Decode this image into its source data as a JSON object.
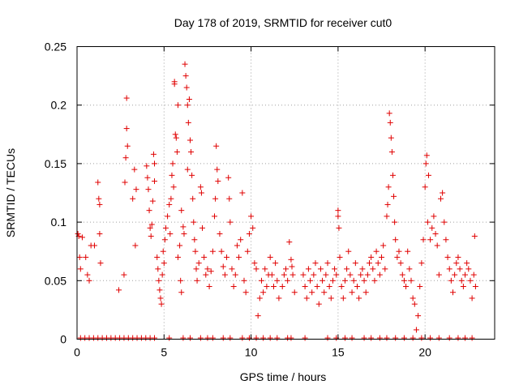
{
  "chart_data": {
    "type": "scatter",
    "title": "Day 178 of 2019, SRMTID for receiver cut0",
    "xlabel": "GPS time / hours",
    "ylabel": "SRMTID / TECUs",
    "xlim": [
      0,
      24
    ],
    "ylim": [
      0,
      0.25
    ],
    "xticks": [
      0,
      5,
      10,
      15,
      20
    ],
    "xtick_labels": [
      "0",
      "5",
      "10",
      "15",
      "20"
    ],
    "yticks": [
      0,
      0.05,
      0.1,
      0.15,
      0.2,
      0.25
    ],
    "ytick_labels": [
      "0",
      "0.05",
      "0.1",
      "0.15",
      "0.2",
      "0.25"
    ],
    "grid": true,
    "marker": "+",
    "series": [
      {
        "name": "SRMTID",
        "color": "#e00000",
        "points": [
          [
            0.05,
            0.09
          ],
          [
            0.1,
            0.088
          ],
          [
            0.15,
            0.07
          ],
          [
            0.2,
            0.06
          ],
          [
            0.3,
            0.087
          ],
          [
            0.5,
            0.07
          ],
          [
            0.6,
            0.055
          ],
          [
            0.7,
            0.05
          ],
          [
            0.8,
            0.08
          ],
          [
            1.0,
            0.08
          ],
          [
            1.2,
            0.134
          ],
          [
            1.25,
            0.12
          ],
          [
            1.3,
            0.115
          ],
          [
            1.3,
            0.09
          ],
          [
            1.35,
            0.065
          ],
          [
            2.4,
            0.042
          ],
          [
            2.7,
            0.055
          ],
          [
            2.75,
            0.134
          ],
          [
            2.8,
            0.155
          ],
          [
            2.85,
            0.18
          ],
          [
            2.85,
            0.206
          ],
          [
            2.9,
            0.165
          ],
          [
            3.2,
            0.12
          ],
          [
            3.3,
            0.145
          ],
          [
            3.35,
            0.08
          ],
          [
            3.4,
            0.128
          ],
          [
            4.0,
            0.148
          ],
          [
            4.05,
            0.138
          ],
          [
            4.1,
            0.128
          ],
          [
            4.15,
            0.11
          ],
          [
            4.2,
            0.095
          ],
          [
            4.25,
            0.088
          ],
          [
            4.3,
            0.098
          ],
          [
            4.35,
            0.118
          ],
          [
            4.4,
            0.158
          ],
          [
            4.45,
            0.15
          ],
          [
            4.45,
            0.135
          ],
          [
            4.6,
            0.07
          ],
          [
            4.65,
            0.06
          ],
          [
            4.7,
            0.05
          ],
          [
            4.75,
            0.042
          ],
          [
            4.8,
            0.035
          ],
          [
            4.85,
            0.03
          ],
          [
            4.9,
            0.055
          ],
          [
            4.95,
            0.075
          ],
          [
            5.0,
            0.065
          ],
          [
            5.05,
            0.085
          ],
          [
            5.1,
            0.095
          ],
          [
            5.2,
            0.105
          ],
          [
            5.3,
            0.115
          ],
          [
            5.35,
            0.09
          ],
          [
            5.4,
            0.12
          ],
          [
            5.45,
            0.14
          ],
          [
            5.5,
            0.15
          ],
          [
            5.55,
            0.13
          ],
          [
            5.6,
            0.22
          ],
          [
            5.6,
            0.218
          ],
          [
            5.65,
            0.175
          ],
          [
            5.7,
            0.172
          ],
          [
            5.75,
            0.16
          ],
          [
            5.8,
            0.2
          ],
          [
            5.8,
            0.07
          ],
          [
            5.9,
            0.08
          ],
          [
            5.95,
            0.05
          ],
          [
            6.0,
            0.11
          ],
          [
            6.0,
            0.04
          ],
          [
            6.1,
            0.096
          ],
          [
            6.15,
            0.09
          ],
          [
            6.2,
            0.235
          ],
          [
            6.25,
            0.225
          ],
          [
            6.3,
            0.215
          ],
          [
            6.35,
            0.2
          ],
          [
            6.35,
            0.145
          ],
          [
            6.4,
            0.185
          ],
          [
            6.45,
            0.205
          ],
          [
            6.5,
            0.17
          ],
          [
            6.55,
            0.16
          ],
          [
            6.6,
            0.14
          ],
          [
            6.65,
            0.12
          ],
          [
            6.7,
            0.1
          ],
          [
            6.75,
            0.085
          ],
          [
            6.8,
            0.075
          ],
          [
            6.85,
            0.06
          ],
          [
            6.9,
            0.05
          ],
          [
            7.0,
            0.065
          ],
          [
            7.1,
            0.13
          ],
          [
            7.15,
            0.125
          ],
          [
            7.2,
            0.095
          ],
          [
            7.3,
            0.07
          ],
          [
            7.4,
            0.055
          ],
          [
            7.5,
            0.06
          ],
          [
            7.6,
            0.045
          ],
          [
            7.7,
            0.058
          ],
          [
            7.8,
            0.075
          ],
          [
            7.9,
            0.105
          ],
          [
            7.95,
            0.12
          ],
          [
            8.0,
            0.165
          ],
          [
            8.05,
            0.145
          ],
          [
            8.1,
            0.135
          ],
          [
            8.2,
            0.09
          ],
          [
            8.3,
            0.075
          ],
          [
            8.4,
            0.062
          ],
          [
            8.5,
            0.055
          ],
          [
            8.6,
            0.07
          ],
          [
            8.7,
            0.138
          ],
          [
            8.75,
            0.12
          ],
          [
            8.8,
            0.1
          ],
          [
            8.9,
            0.06
          ],
          [
            9.0,
            0.045
          ],
          [
            9.1,
            0.055
          ],
          [
            9.2,
            0.08
          ],
          [
            9.3,
            0.07
          ],
          [
            9.4,
            0.085
          ],
          [
            9.5,
            0.125
          ],
          [
            9.6,
            0.05
          ],
          [
            9.7,
            0.04
          ],
          [
            9.8,
            0.075
          ],
          [
            9.9,
            0.09
          ],
          [
            10.0,
            0.105
          ],
          [
            10.1,
            0.095
          ],
          [
            10.2,
            0.065
          ],
          [
            10.3,
            0.06
          ],
          [
            10.4,
            0.02
          ],
          [
            10.5,
            0.035
          ],
          [
            10.6,
            0.05
          ],
          [
            10.7,
            0.04
          ],
          [
            10.8,
            0.06
          ],
          [
            10.9,
            0.045
          ],
          [
            11.0,
            0.055
          ],
          [
            11.1,
            0.07
          ],
          [
            11.2,
            0.055
          ],
          [
            11.3,
            0.045
          ],
          [
            11.4,
            0.065
          ],
          [
            11.5,
            0.05
          ],
          [
            11.6,
            0.035
          ],
          [
            11.8,
            0.045
          ],
          [
            11.9,
            0.055
          ],
          [
            12.0,
            0.06
          ],
          [
            12.1,
            0.05
          ],
          [
            12.2,
            0.083
          ],
          [
            12.3,
            0.068
          ],
          [
            12.35,
            0.062
          ],
          [
            12.4,
            0.055
          ],
          [
            12.5,
            0.04
          ],
          [
            13.0,
            0.055
          ],
          [
            13.1,
            0.045
          ],
          [
            13.2,
            0.035
          ],
          [
            13.3,
            0.06
          ],
          [
            13.4,
            0.05
          ],
          [
            13.5,
            0.04
          ],
          [
            13.6,
            0.055
          ],
          [
            13.7,
            0.065
          ],
          [
            13.8,
            0.045
          ],
          [
            13.9,
            0.03
          ],
          [
            14.0,
            0.06
          ],
          [
            14.1,
            0.05
          ],
          [
            14.2,
            0.04
          ],
          [
            14.3,
            0.055
          ],
          [
            14.4,
            0.065
          ],
          [
            14.5,
            0.045
          ],
          [
            14.6,
            0.035
          ],
          [
            14.7,
            0.05
          ],
          [
            14.8,
            0.06
          ],
          [
            14.9,
            0.055
          ],
          [
            15.0,
            0.11
          ],
          [
            15.0,
            0.105
          ],
          [
            15.05,
            0.095
          ],
          [
            15.1,
            0.07
          ],
          [
            15.2,
            0.045
          ],
          [
            15.3,
            0.035
          ],
          [
            15.4,
            0.05
          ],
          [
            15.5,
            0.06
          ],
          [
            15.6,
            0.075
          ],
          [
            15.7,
            0.055
          ],
          [
            15.8,
            0.04
          ],
          [
            15.9,
            0.05
          ],
          [
            16.0,
            0.065
          ],
          [
            16.1,
            0.045
          ],
          [
            16.2,
            0.035
          ],
          [
            16.3,
            0.055
          ],
          [
            16.4,
            0.06
          ],
          [
            16.5,
            0.05
          ],
          [
            16.6,
            0.04
          ],
          [
            16.7,
            0.055
          ],
          [
            16.8,
            0.065
          ],
          [
            16.9,
            0.07
          ],
          [
            17.0,
            0.06
          ],
          [
            17.1,
            0.05
          ],
          [
            17.2,
            0.075
          ],
          [
            17.3,
            0.065
          ],
          [
            17.4,
            0.055
          ],
          [
            17.5,
            0.07
          ],
          [
            17.6,
            0.08
          ],
          [
            17.7,
            0.06
          ],
          [
            17.8,
            0.105
          ],
          [
            17.85,
            0.115
          ],
          [
            17.9,
            0.13
          ],
          [
            17.95,
            0.193
          ],
          [
            18.0,
            0.185
          ],
          [
            18.05,
            0.172
          ],
          [
            18.1,
            0.16
          ],
          [
            18.15,
            0.14
          ],
          [
            18.2,
            0.122
          ],
          [
            18.25,
            0.1
          ],
          [
            18.3,
            0.085
          ],
          [
            18.4,
            0.07
          ],
          [
            18.5,
            0.075
          ],
          [
            18.6,
            0.065
          ],
          [
            18.7,
            0.055
          ],
          [
            18.8,
            0.05
          ],
          [
            18.9,
            0.045
          ],
          [
            19.0,
            0.075
          ],
          [
            19.1,
            0.06
          ],
          [
            19.2,
            0.05
          ],
          [
            19.3,
            0.035
          ],
          [
            19.4,
            0.03
          ],
          [
            19.5,
            0.008
          ],
          [
            19.6,
            0.02
          ],
          [
            19.7,
            0.045
          ],
          [
            19.8,
            0.065
          ],
          [
            19.9,
            0.085
          ],
          [
            20.0,
            0.13
          ],
          [
            20.05,
            0.15
          ],
          [
            20.1,
            0.157
          ],
          [
            20.15,
            0.1
          ],
          [
            20.2,
            0.14
          ],
          [
            20.3,
            0.085
          ],
          [
            20.4,
            0.095
          ],
          [
            20.5,
            0.105
          ],
          [
            20.6,
            0.09
          ],
          [
            20.7,
            0.08
          ],
          [
            20.8,
            0.055
          ],
          [
            20.9,
            0.12
          ],
          [
            21.0,
            0.125
          ],
          [
            21.1,
            0.1
          ],
          [
            21.2,
            0.085
          ],
          [
            21.3,
            0.07
          ],
          [
            21.4,
            0.06
          ],
          [
            21.5,
            0.05
          ],
          [
            21.6,
            0.04
          ],
          [
            21.7,
            0.055
          ],
          [
            21.8,
            0.065
          ],
          [
            21.9,
            0.07
          ],
          [
            22.0,
            0.06
          ],
          [
            22.1,
            0.05
          ],
          [
            22.2,
            0.045
          ],
          [
            22.3,
            0.055
          ],
          [
            22.4,
            0.065
          ],
          [
            22.5,
            0.06
          ],
          [
            22.6,
            0.05
          ],
          [
            22.7,
            0.035
          ],
          [
            22.8,
            0.055
          ],
          [
            22.85,
            0.088
          ],
          [
            22.9,
            0.045
          ],
          [
            0.2,
            0.001
          ],
          [
            0.45,
            0.001
          ],
          [
            0.7,
            0.001
          ],
          [
            0.95,
            0.001
          ],
          [
            1.2,
            0.001
          ],
          [
            1.45,
            0.001
          ],
          [
            1.7,
            0.001
          ],
          [
            1.95,
            0.001
          ],
          [
            2.2,
            0.001
          ],
          [
            2.45,
            0.001
          ],
          [
            2.7,
            0.001
          ],
          [
            2.95,
            0.001
          ],
          [
            3.2,
            0.001
          ],
          [
            3.45,
            0.001
          ],
          [
            3.7,
            0.001
          ],
          [
            3.95,
            0.001
          ],
          [
            4.2,
            0.001
          ],
          [
            4.45,
            0.001
          ],
          [
            5.3,
            0.001
          ],
          [
            6.1,
            0.001
          ],
          [
            6.5,
            0.001
          ],
          [
            7.1,
            0.001
          ],
          [
            7.5,
            0.001
          ],
          [
            7.8,
            0.001
          ],
          [
            8.4,
            0.001
          ],
          [
            8.8,
            0.001
          ],
          [
            9.5,
            0.001
          ],
          [
            9.9,
            0.001
          ],
          [
            10.3,
            0.001
          ],
          [
            10.7,
            0.001
          ],
          [
            11.1,
            0.001
          ],
          [
            11.5,
            0.001
          ],
          [
            12.1,
            0.001
          ],
          [
            12.3,
            0.001
          ],
          [
            13.1,
            0.001
          ],
          [
            14.4,
            0.001
          ],
          [
            14.9,
            0.001
          ],
          [
            15.4,
            0.001
          ],
          [
            15.8,
            0.001
          ],
          [
            16.5,
            0.001
          ],
          [
            16.9,
            0.001
          ],
          [
            17.4,
            0.001
          ],
          [
            17.8,
            0.001
          ],
          [
            18.3,
            0.001
          ],
          [
            18.8,
            0.001
          ],
          [
            19.3,
            0.001
          ],
          [
            19.8,
            0.001
          ],
          [
            20.3,
            0.001
          ],
          [
            20.8,
            0.001
          ],
          [
            21.4,
            0.001
          ],
          [
            21.9,
            0.001
          ],
          [
            22.3,
            0.001
          ],
          [
            22.7,
            0.001
          ]
        ]
      }
    ]
  }
}
